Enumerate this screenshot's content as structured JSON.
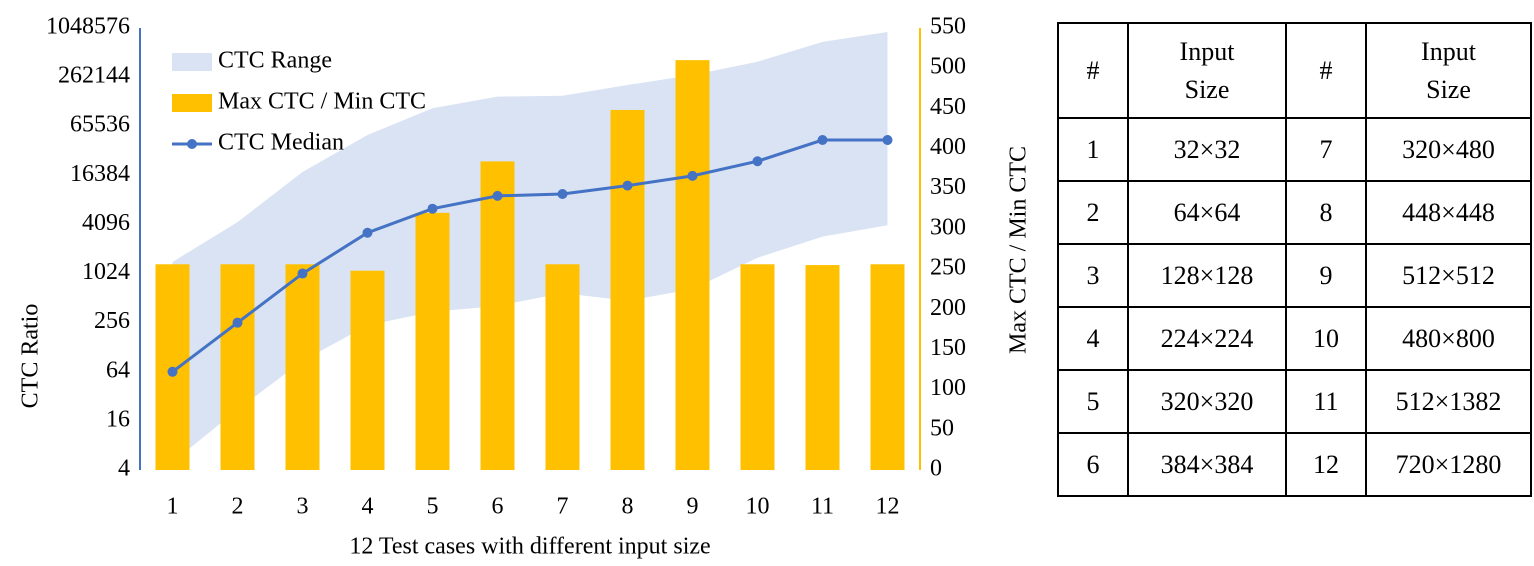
{
  "chart_data": {
    "type": "combo",
    "x_label": "12 Test cases with different input size",
    "y_label": "CTC Ratio",
    "y2_label": "Max CTC / Min CTC",
    "categories": [
      "1",
      "2",
      "3",
      "4",
      "5",
      "6",
      "7",
      "8",
      "9",
      "10",
      "11",
      "12"
    ],
    "ylog": true,
    "ylim": [
      4,
      1048576
    ],
    "yticks": [
      4,
      16,
      64,
      256,
      1024,
      4096,
      16384,
      65536,
      262144,
      1048576
    ],
    "y2lim": [
      0,
      550
    ],
    "y2ticks": [
      0,
      50,
      100,
      150,
      200,
      250,
      300,
      350,
      400,
      450,
      500,
      550
    ],
    "legend": "upper left",
    "series": [
      {
        "name": "CTC Range",
        "type": "area",
        "color": "#dae3f3",
        "low": [
          5,
          22,
          87,
          238,
          348,
          410,
          590,
          475,
          660,
          1600,
          2900,
          4000
        ],
        "high": [
          1420,
          4380,
          18000,
          51100,
          109000,
          151000,
          155000,
          210000,
          278000,
          404000,
          710000,
          936000
        ]
      },
      {
        "name": "Max CTC / Min CTC",
        "type": "bar",
        "axis": "y2",
        "color": "#ffc000",
        "values": [
          256,
          256,
          256,
          248,
          320,
          384,
          256,
          448,
          510,
          256,
          255,
          256
        ]
      },
      {
        "name": "CTC Median",
        "type": "line",
        "color": "#4472c4",
        "values": [
          64,
          256,
          1024,
          3240,
          6390,
          9170,
          9680,
          12250,
          16140,
          24400,
          44400,
          44400
        ]
      }
    ]
  },
  "table": {
    "header": [
      "#",
      "Input Size",
      "#",
      "Input Size"
    ],
    "rows": [
      [
        "1",
        "32×32",
        "7",
        "320×480"
      ],
      [
        "2",
        "64×64",
        "8",
        "448×448"
      ],
      [
        "3",
        "128×128",
        "9",
        "512×512"
      ],
      [
        "4",
        "224×224",
        "10",
        "480×800"
      ],
      [
        "5",
        "320×320",
        "11",
        "512×1382"
      ],
      [
        "6",
        "384×384",
        "12",
        "720×1280"
      ]
    ]
  }
}
